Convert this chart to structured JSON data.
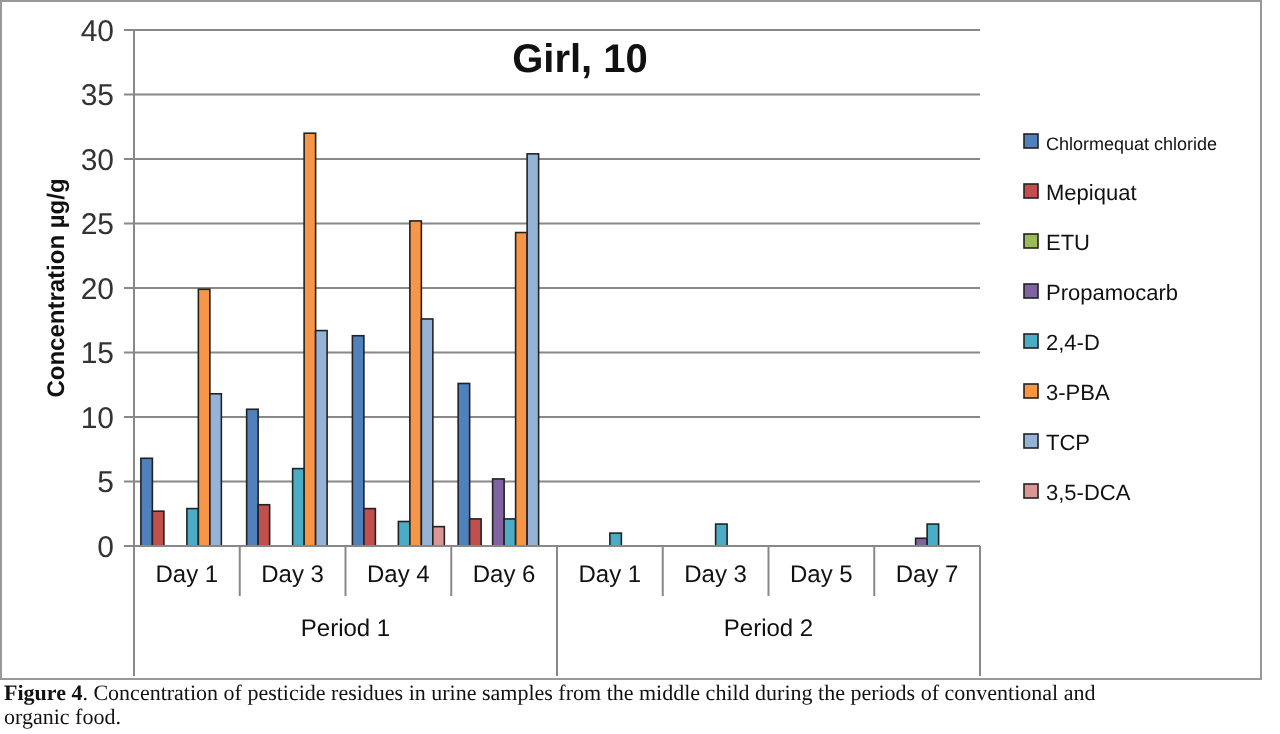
{
  "chart_data": {
    "type": "bar",
    "title": "Girl, 10",
    "ylabel": "Concentration µg/g",
    "categories": [
      "Day 1",
      "Day 3",
      "Day 4",
      "Day 6",
      "Day 1",
      "Day 3",
      "Day 5",
      "Day 7"
    ],
    "series": [
      {
        "name": "Chlormequat chloride",
        "color": "#4f81bd",
        "values": [
          6.8,
          10.6,
          16.3,
          12.6,
          null,
          null,
          null,
          null
        ]
      },
      {
        "name": "Mepiquat",
        "color": "#c0504d",
        "values": [
          2.7,
          3.2,
          2.9,
          2.1,
          null,
          null,
          null,
          null
        ]
      },
      {
        "name": "ETU",
        "color": "#9bbb59",
        "values": [
          null,
          null,
          null,
          null,
          null,
          null,
          null,
          null
        ]
      },
      {
        "name": "Propamocarb",
        "color": "#8064a2",
        "values": [
          null,
          null,
          null,
          5.2,
          null,
          null,
          null,
          0.6
        ]
      },
      {
        "name": "2,4-D",
        "color": "#4bacc6",
        "values": [
          2.9,
          6.0,
          1.9,
          2.1,
          1.0,
          1.7,
          null,
          1.7
        ]
      },
      {
        "name": "3-PBA",
        "color": "#f79646",
        "values": [
          19.9,
          32.0,
          25.2,
          24.3,
          null,
          null,
          null,
          null
        ]
      },
      {
        "name": "TCP",
        "color": "#95b3d7",
        "values": [
          11.8,
          16.7,
          17.6,
          30.4,
          null,
          null,
          null,
          null
        ]
      },
      {
        "name": "3,5-DCA",
        "color": "#d99694",
        "values": [
          null,
          null,
          1.5,
          null,
          null,
          null,
          null,
          null
        ]
      }
    ],
    "ylim": [
      0,
      40
    ],
    "yticks": [
      0,
      5,
      10,
      15,
      20,
      25,
      30,
      35,
      40
    ],
    "grid": "y",
    "legend": "right",
    "annotations": [
      "Period 1",
      "Period 2",
      "Figure 4. Concentration of pesticide residues in urine samples from the middle child during the periods of conventional and organic food."
    ]
  }
}
